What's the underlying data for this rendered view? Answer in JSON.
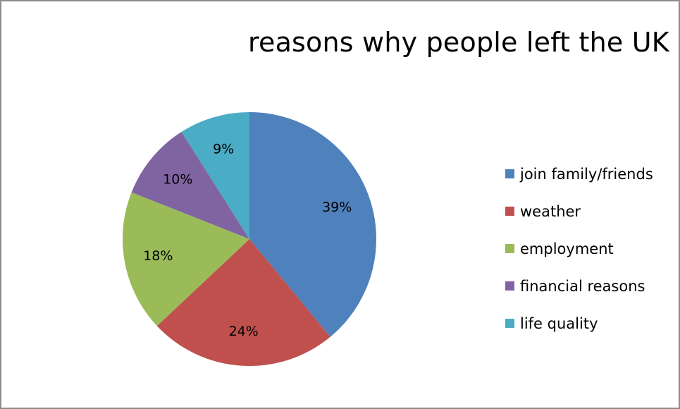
{
  "chart_data": {
    "type": "pie",
    "title": "reasons why people left the UK",
    "categories": [
      "join family/friends",
      "weather",
      "employment",
      "financial reasons",
      "life quality"
    ],
    "values": [
      39,
      24,
      18,
      10,
      9
    ],
    "value_labels": [
      "39%",
      "24%",
      "18%",
      "10%",
      "9%"
    ],
    "colors": [
      "#4f81bd",
      "#c0504d",
      "#9bbb59",
      "#8064a2",
      "#4bacc6"
    ],
    "start_angle_deg": 0,
    "direction": "clockwise",
    "legend_position": "right"
  }
}
